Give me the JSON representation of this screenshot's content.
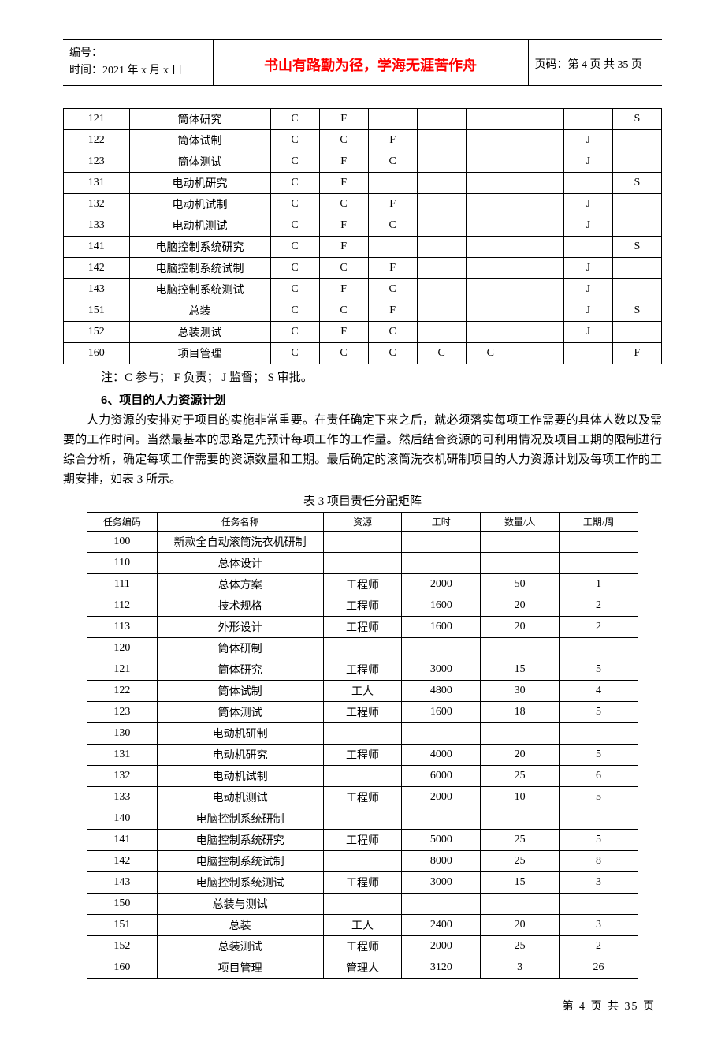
{
  "header": {
    "serial_label": "编号：",
    "time_label": "时间：2021 年 x 月 x 日",
    "motto": "书山有路勤为径，学海无涯苦作舟",
    "page_label": "页码：第 4 页  共 35 页"
  },
  "table1": {
    "rows": [
      [
        "121",
        "筒体研究",
        "C",
        "F",
        "",
        "",
        "",
        "",
        "",
        "S"
      ],
      [
        "122",
        "筒体试制",
        "C",
        "C",
        "F",
        "",
        "",
        "",
        "J",
        ""
      ],
      [
        "123",
        "筒体测试",
        "C",
        "F",
        "C",
        "",
        "",
        "",
        "J",
        ""
      ],
      [
        "131",
        "电动机研究",
        "C",
        "F",
        "",
        "",
        "",
        "",
        "",
        "S"
      ],
      [
        "132",
        "电动机试制",
        "C",
        "C",
        "F",
        "",
        "",
        "",
        "J",
        ""
      ],
      [
        "133",
        "电动机测试",
        "C",
        "F",
        "C",
        "",
        "",
        "",
        "J",
        ""
      ],
      [
        "141",
        "电脑控制系统研究",
        "C",
        "F",
        "",
        "",
        "",
        "",
        "",
        "S"
      ],
      [
        "142",
        "电脑控制系统试制",
        "C",
        "C",
        "F",
        "",
        "",
        "",
        "J",
        ""
      ],
      [
        "143",
        "电脑控制系统测试",
        "C",
        "F",
        "C",
        "",
        "",
        "",
        "J",
        ""
      ],
      [
        "151",
        "总装",
        "C",
        "C",
        "F",
        "",
        "",
        "",
        "J",
        "S"
      ],
      [
        "152",
        "总装测试",
        "C",
        "F",
        "C",
        "",
        "",
        "",
        "J",
        ""
      ],
      [
        "160",
        "项目管理",
        "C",
        "C",
        "C",
        "C",
        "C",
        "",
        "",
        "F"
      ]
    ]
  },
  "note": "注：C 参与；   F 负责；   J 监督；   S 审批。",
  "section_title": "6、项目的人力资源计划",
  "paragraph": "人力资源的安排对于项目的实施非常重要。在责任确定下来之后，就必须落实每项工作需要的具体人数以及需要的工作时间。当然最基本的思路是先预计每项工作的工作量。然后结合资源的可利用情况及项目工期的限制进行综合分析，确定每项工作需要的资源数量和工期。最后确定的滚筒洗衣机研制项目的人力资源计划及每项工作的工期安排，如表 3 所示。",
  "table2": {
    "caption": "表 3    项目责任分配矩阵",
    "headers": [
      "任务编码",
      "任务名称",
      "资源",
      "工时",
      "数量/人",
      "工期/周"
    ],
    "rows": [
      [
        "100",
        "新款全自动滚筒洗衣机研制",
        "",
        "",
        "",
        ""
      ],
      [
        "110",
        "总体设计",
        "",
        "",
        "",
        ""
      ],
      [
        "111",
        "总体方案",
        "工程师",
        "2000",
        "50",
        "1"
      ],
      [
        "112",
        "技术规格",
        "工程师",
        "1600",
        "20",
        "2"
      ],
      [
        "113",
        "外形设计",
        "工程师",
        "1600",
        "20",
        "2"
      ],
      [
        "120",
        "筒体研制",
        "",
        "",
        "",
        ""
      ],
      [
        "121",
        "筒体研究",
        "工程师",
        "3000",
        "15",
        "5"
      ],
      [
        "122",
        "筒体试制",
        "工人",
        "4800",
        "30",
        "4"
      ],
      [
        "123",
        "筒体测试",
        "工程师",
        "1600",
        "18",
        "5"
      ],
      [
        "130",
        "电动机研制",
        "",
        "",
        "",
        ""
      ],
      [
        "131",
        "电动机研究",
        "工程师",
        "4000",
        "20",
        "5"
      ],
      [
        "132",
        "电动机试制",
        "",
        "6000",
        "25",
        "6"
      ],
      [
        "133",
        "电动机测试",
        "工程师",
        "2000",
        "10",
        "5"
      ],
      [
        "140",
        "电脑控制系统研制",
        "",
        "",
        "",
        ""
      ],
      [
        "141",
        "电脑控制系统研究",
        "工程师",
        "5000",
        "25",
        "5"
      ],
      [
        "142",
        "电脑控制系统试制",
        "",
        "8000",
        "25",
        "8"
      ],
      [
        "143",
        "电脑控制系统测试",
        "工程师",
        "3000",
        "15",
        "3"
      ],
      [
        "150",
        "总装与测试",
        "",
        "",
        "",
        ""
      ],
      [
        "151",
        "总装",
        "工人",
        "2400",
        "20",
        "3"
      ],
      [
        "152",
        "总装测试",
        "工程师",
        "2000",
        "25",
        "2"
      ],
      [
        "160",
        "项目管理",
        "管理人",
        "3120",
        "3",
        "26"
      ]
    ]
  },
  "footer": "第 4 页 共 35 页"
}
